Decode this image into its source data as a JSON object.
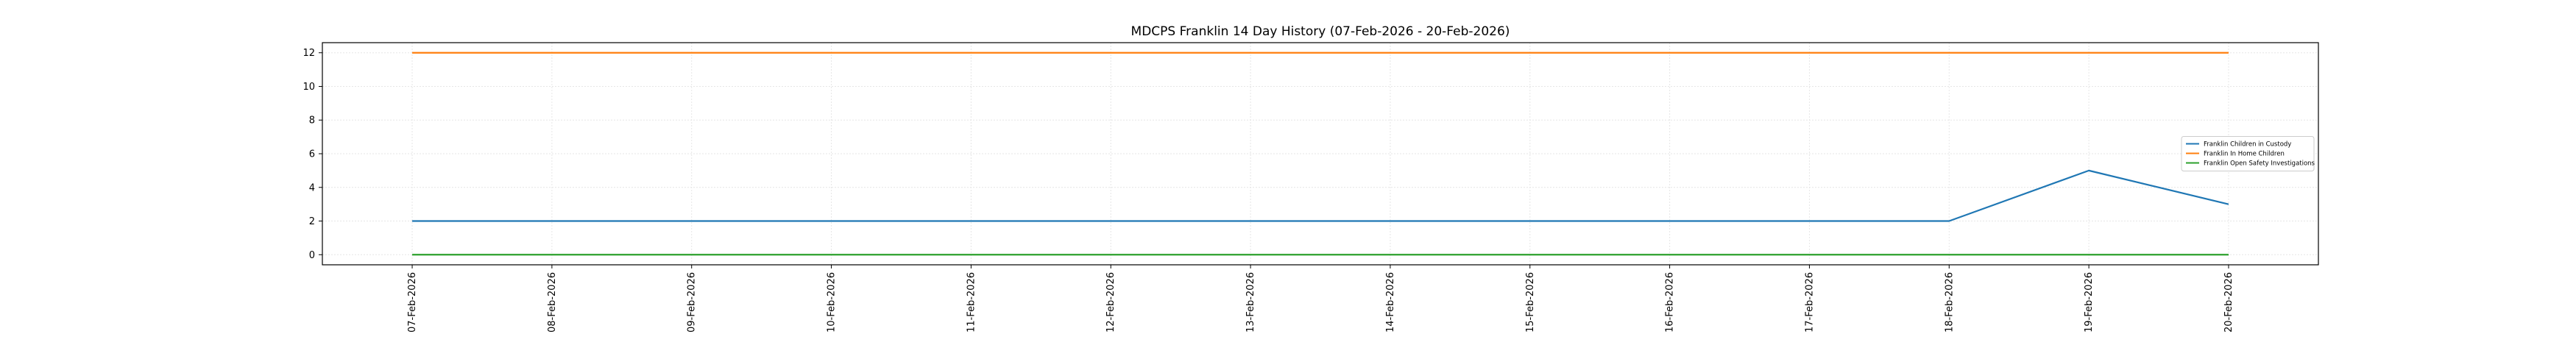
{
  "chart_data": {
    "type": "line",
    "title": "MDCPS Franklin 14 Day History (07-Feb-2026 - 20-Feb-2026)",
    "xlabel": "",
    "ylabel": "",
    "categories": [
      "07-Feb-2026",
      "08-Feb-2026",
      "09-Feb-2026",
      "10-Feb-2026",
      "11-Feb-2026",
      "12-Feb-2026",
      "13-Feb-2026",
      "14-Feb-2026",
      "15-Feb-2026",
      "16-Feb-2026",
      "17-Feb-2026",
      "18-Feb-2026",
      "19-Feb-2026",
      "20-Feb-2026"
    ],
    "ylim": [
      -0.6,
      12.6
    ],
    "yticks": [
      0,
      2,
      4,
      6,
      8,
      10,
      12
    ],
    "grid": true,
    "legend_position": "center-right",
    "series": [
      {
        "name": "Franklin Children in Custody",
        "color": "#1f77b4",
        "values": [
          2,
          2,
          2,
          2,
          2,
          2,
          2,
          2,
          2,
          2,
          2,
          2,
          5,
          3
        ]
      },
      {
        "name": "Franklin In Home Children",
        "color": "#ff7f0e",
        "values": [
          12,
          12,
          12,
          12,
          12,
          12,
          12,
          12,
          12,
          12,
          12,
          12,
          12,
          12
        ]
      },
      {
        "name": "Franklin Open Safety Investigations",
        "color": "#2ca02c",
        "values": [
          0,
          0,
          0,
          0,
          0,
          0,
          0,
          0,
          0,
          0,
          0,
          0,
          0,
          0
        ]
      }
    ]
  }
}
